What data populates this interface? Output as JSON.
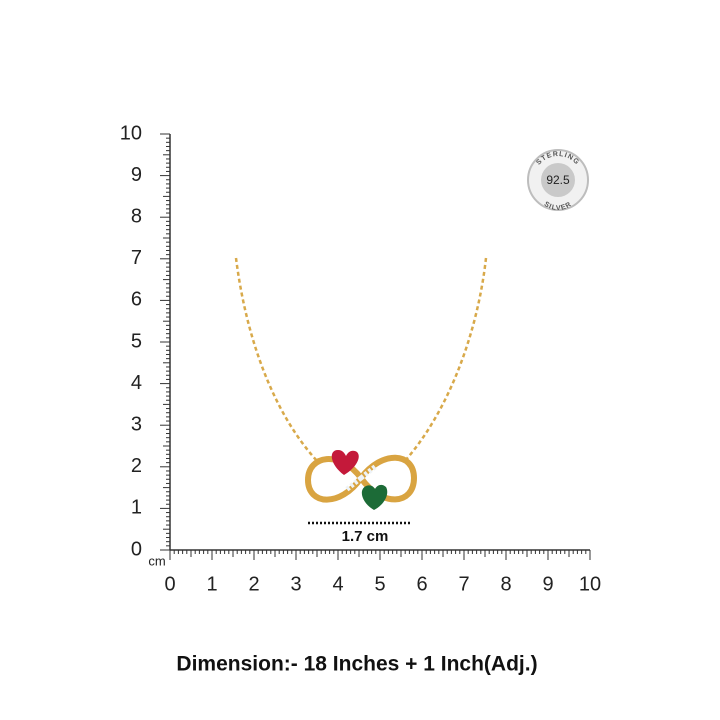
{
  "ruler": {
    "unit": "cm",
    "vertical_labels": [
      0,
      1,
      2,
      3,
      4,
      5,
      6,
      7,
      8,
      9,
      10
    ],
    "horizontal_labels": [
      0,
      1,
      2,
      3,
      4,
      5,
      6,
      7,
      8,
      9,
      10
    ]
  },
  "badge": {
    "top": "STERLING",
    "center": "92.5",
    "bottom": "SILVER"
  },
  "measure": "1.7 cm",
  "caption": "Dimension:- 18 Inches + 1 Inch(Adj.)"
}
